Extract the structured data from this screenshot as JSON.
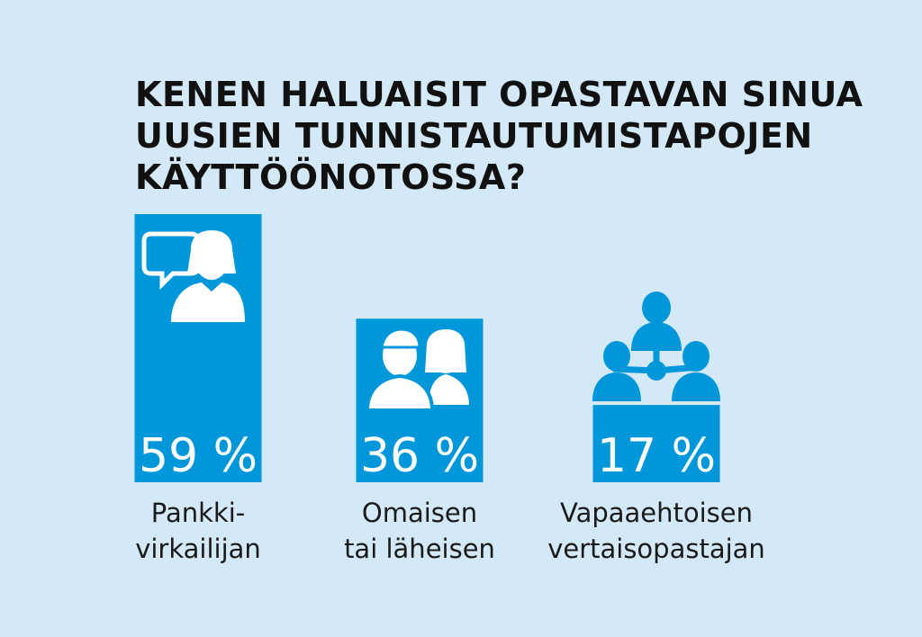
{
  "title_lines": [
    "KENEN HALUAISIT OPASTAVAN SINUA",
    "UUSIEN TUNNISTAUTUMISTAPOJEN",
    "KÄYTTÖÖNOTOSSA?"
  ],
  "colors": {
    "background": "#d3e9f8",
    "bar": "#0096da",
    "icon": "#ffffff"
  },
  "chart_data": {
    "type": "bar",
    "title": "KENEN HALUAISIT OPASTAVAN SINUA UUSIEN TUNNISTAUTUMISTAPOJEN KÄYTTÖÖNOTOSSA?",
    "unit": "%",
    "ylim": [
      0,
      59
    ],
    "categories": [
      {
        "label_lines": [
          "Pankki-",
          "virkailijan"
        ],
        "icon": "bank-clerk-speech-icon"
      },
      {
        "label_lines": [
          "Omaisen",
          "tai läheisen"
        ],
        "icon": "relatives-icon"
      },
      {
        "label_lines": [
          "Vapaaehtoisen",
          "vertaisopastajan"
        ],
        "icon": "peer-group-icon"
      }
    ],
    "values": [
      59,
      36,
      17
    ],
    "value_labels": [
      "59 %",
      "36 %",
      "17 %"
    ]
  }
}
